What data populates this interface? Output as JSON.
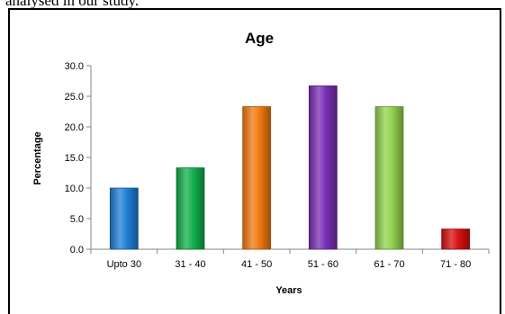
{
  "page": {
    "top_text": "analysed in our study."
  },
  "chart_data": {
    "type": "bar",
    "title": "Age",
    "xlabel": "Years",
    "ylabel": "Percentage",
    "categories": [
      "Upto 30",
      "31 - 40",
      "41 - 50",
      "51 - 60",
      "61 - 70",
      "71 - 80"
    ],
    "values": [
      10.0,
      13.3,
      23.3,
      26.7,
      23.3,
      3.3
    ],
    "colors": [
      "#1f7fd6",
      "#12b04c",
      "#f07a10",
      "#7b2fb4",
      "#92d34c",
      "#d61010"
    ],
    "yticks": [
      "0.0",
      "5.0",
      "10.0",
      "15.0",
      "20.0",
      "25.0",
      "30.0"
    ],
    "ylim": [
      0,
      30
    ],
    "grid": false,
    "legend": "none"
  }
}
